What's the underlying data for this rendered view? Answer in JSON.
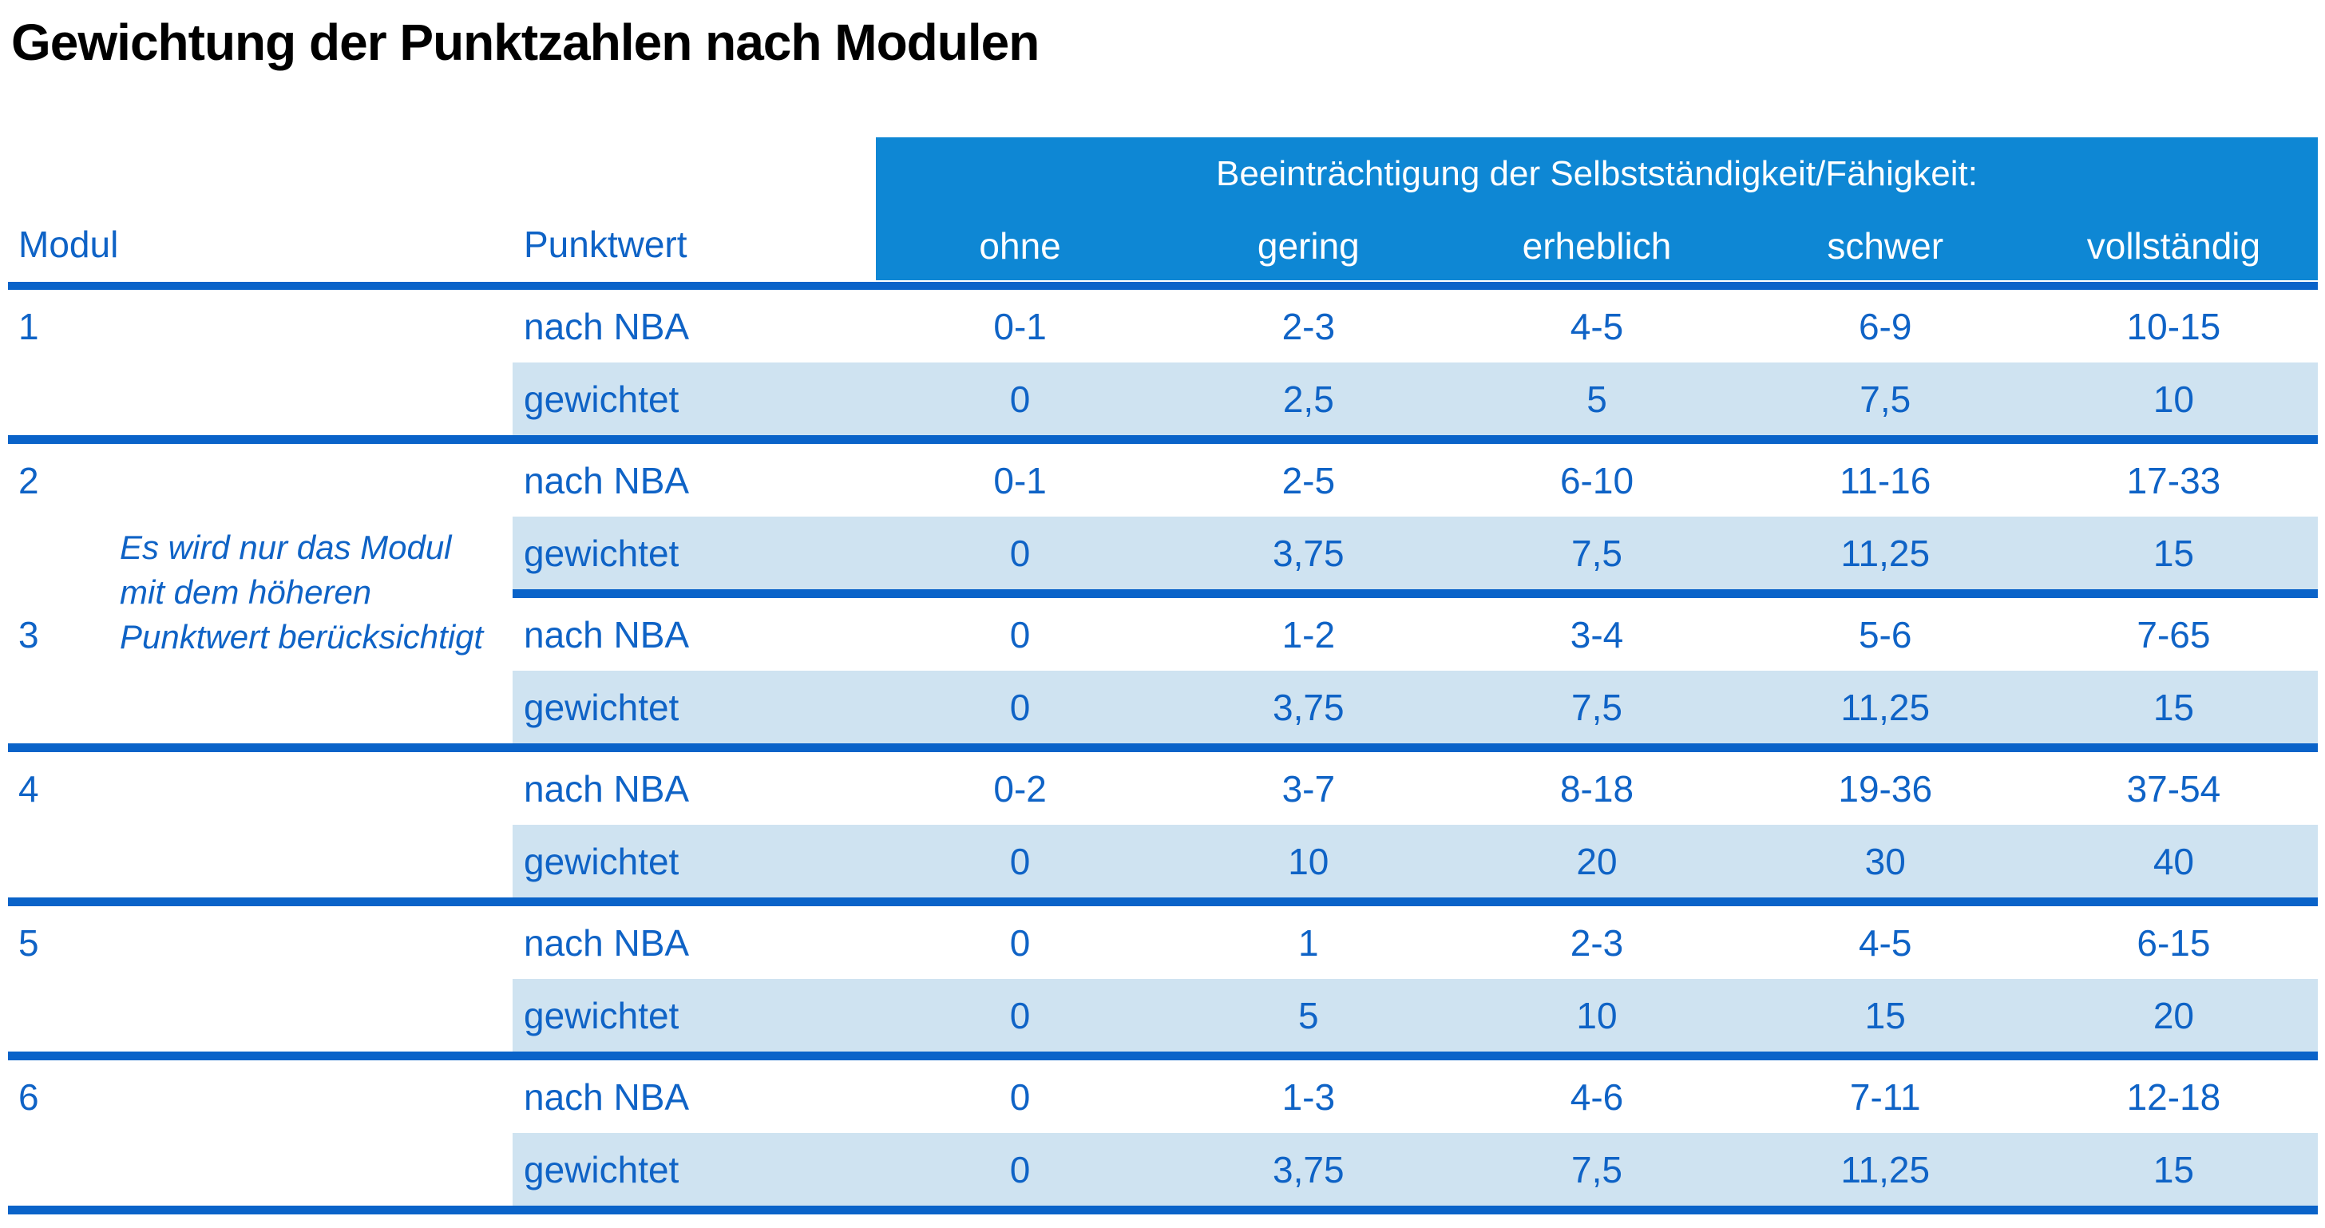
{
  "title": "Gewichtung der Punktzahlen nach Modulen",
  "table": {
    "col_headers": {
      "modul": "Modul",
      "punktwert": "Punktwert",
      "impairment_title": "Beeinträchtigung der Selbstständigkeit/Fähigkeit:",
      "levels": [
        "ohne",
        "gering",
        "erheblich",
        "schwer",
        "vollständig"
      ]
    },
    "labels": {
      "nba": "nach NBA",
      "weighted": "gewichtet"
    },
    "note": "Es wird nur das Modul\nmit dem höheren\nPunktwert berücksichtigt",
    "modules": [
      {
        "id": "1",
        "nba": [
          "0-1",
          "2-3",
          "4-5",
          "6-9",
          "10-15"
        ],
        "weighted": [
          "0",
          "2,5",
          "5",
          "7,5",
          "10"
        ]
      },
      {
        "id": "2",
        "nba": [
          "0-1",
          "2-5",
          "6-10",
          "11-16",
          "17-33"
        ],
        "weighted": [
          "0",
          "3,75",
          "7,5",
          "11,25",
          "15"
        ]
      },
      {
        "id": "3",
        "nba": [
          "0",
          "1-2",
          "3-4",
          "5-6",
          "7-65"
        ],
        "weighted": [
          "0",
          "3,75",
          "7,5",
          "11,25",
          "15"
        ]
      },
      {
        "id": "4",
        "nba": [
          "0-2",
          "3-7",
          "8-18",
          "19-36",
          "37-54"
        ],
        "weighted": [
          "0",
          "10",
          "20",
          "30",
          "40"
        ]
      },
      {
        "id": "5",
        "nba": [
          "0",
          "1",
          "2-3",
          "4-5",
          "6-15"
        ],
        "weighted": [
          "0",
          "5",
          "10",
          "15",
          "20"
        ]
      },
      {
        "id": "6",
        "nba": [
          "0",
          "1-3",
          "4-6",
          "7-11",
          "12-18"
        ],
        "weighted": [
          "0",
          "3,75",
          "7,5",
          "11,25",
          "15"
        ]
      }
    ]
  },
  "colors": {
    "header_background": "#0e87d4",
    "row_band_background": "#cfe3f1",
    "separator_line": "#0a63c9",
    "text_blue": "#0f63c6",
    "title_text": "#000000"
  }
}
